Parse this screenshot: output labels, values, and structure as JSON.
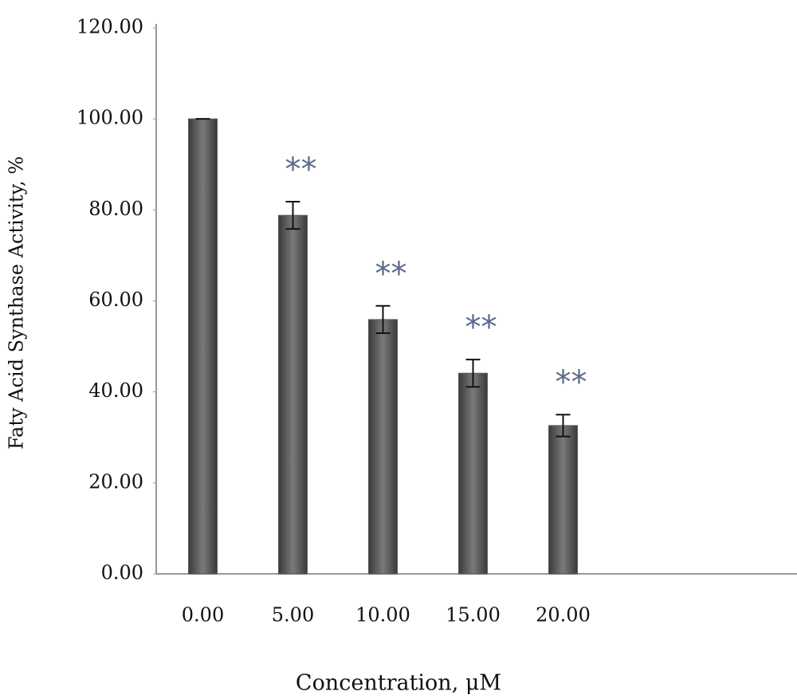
{
  "chart_data": {
    "type": "bar",
    "x_label": "Concentration, μM",
    "y_label": "Faty Acid Synthase Activity, %",
    "categories": [
      "0.00",
      "5.00",
      "10.00",
      "15.00",
      "20.00"
    ],
    "values": [
      100,
      78.8,
      55.9,
      44.1,
      32.6
    ],
    "errors": [
      0,
      3,
      3,
      3,
      2.4
    ],
    "color": "#5a5a5a",
    "annotations": [
      {
        "x": "5.00",
        "text": "**"
      },
      {
        "x": "10.00",
        "text": "**"
      },
      {
        "x": "15.00",
        "text": "**"
      },
      {
        "x": "20.00",
        "text": "**"
      }
    ],
    "ylim": [
      0,
      120
    ],
    "yticks": [
      {
        "value": 0,
        "label": "0.00"
      },
      {
        "value": 20,
        "label": "20.00"
      },
      {
        "value": 40,
        "label": "40.00"
      },
      {
        "value": 60,
        "label": "60.00"
      },
      {
        "value": 80,
        "label": "80.00"
      },
      {
        "value": 100,
        "label": "100.00"
      },
      {
        "value": 120,
        "label": "120.00"
      }
    ],
    "grid": false
  }
}
